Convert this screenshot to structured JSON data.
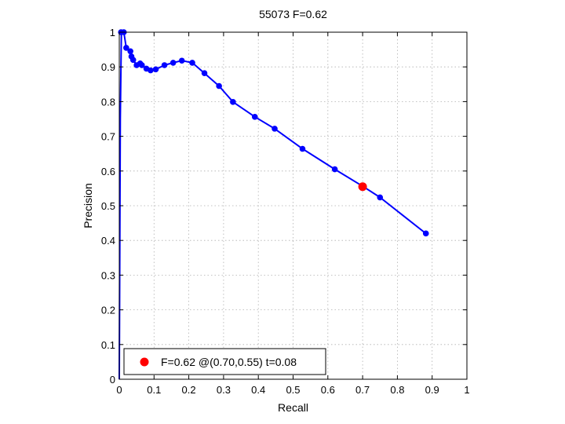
{
  "chart_data": {
    "type": "line",
    "title": "55073 F=0.62",
    "xlabel": "Recall",
    "ylabel": "Precision",
    "xlim": [
      0,
      1
    ],
    "ylim": [
      0,
      1
    ],
    "grid": true,
    "x_ticks": [
      "0",
      "0.1",
      "0.2",
      "0.3",
      "0.4",
      "0.5",
      "0.6",
      "0.7",
      "0.8",
      "0.9",
      "1"
    ],
    "y_ticks": [
      "0",
      "0.1",
      "0.2",
      "0.3",
      "0.4",
      "0.5",
      "0.6",
      "0.7",
      "0.8",
      "0.9",
      "1"
    ],
    "series": [
      {
        "color": "#0000ff",
        "x": [
          0.0,
          0.003,
          0.006,
          0.008,
          0.01,
          0.013,
          0.02,
          0.032,
          0.035,
          0.04,
          0.05,
          0.06,
          0.065,
          0.078,
          0.09,
          0.105,
          0.13,
          0.155,
          0.18,
          0.21,
          0.245,
          0.287,
          0.327,
          0.39,
          0.447,
          0.527,
          0.62,
          0.702,
          0.75,
          0.882
        ],
        "y": [
          0.0,
          0.75,
          1.0,
          1.0,
          1.0,
          1.0,
          0.955,
          0.945,
          0.93,
          0.92,
          0.905,
          0.91,
          0.905,
          0.895,
          0.89,
          0.893,
          0.905,
          0.912,
          0.918,
          0.912,
          0.882,
          0.845,
          0.799,
          0.756,
          0.722,
          0.664,
          0.605,
          0.555,
          0.524,
          0.42
        ],
        "marker_points": [
          [
            0.005,
            1.0
          ],
          [
            0.013,
            1.0
          ],
          [
            0.02,
            0.955
          ],
          [
            0.032,
            0.945
          ],
          [
            0.035,
            0.93
          ],
          [
            0.04,
            0.92
          ],
          [
            0.05,
            0.905
          ],
          [
            0.06,
            0.91
          ],
          [
            0.065,
            0.905
          ],
          [
            0.078,
            0.895
          ],
          [
            0.09,
            0.89
          ],
          [
            0.105,
            0.893
          ],
          [
            0.13,
            0.905
          ],
          [
            0.155,
            0.912
          ],
          [
            0.18,
            0.918
          ],
          [
            0.21,
            0.912
          ],
          [
            0.245,
            0.882
          ],
          [
            0.287,
            0.845
          ],
          [
            0.327,
            0.799
          ],
          [
            0.39,
            0.756
          ],
          [
            0.447,
            0.722
          ],
          [
            0.527,
            0.664
          ],
          [
            0.62,
            0.605
          ],
          [
            0.75,
            0.524
          ],
          [
            0.882,
            0.42
          ]
        ]
      }
    ],
    "highlight_point": {
      "x": 0.7,
      "y": 0.555,
      "color": "#ff0000"
    },
    "legend": {
      "location": "bottom-left",
      "text": "F=0.62 @(0.70,0.55) t=0.08",
      "marker_color": "#ff0000"
    }
  }
}
